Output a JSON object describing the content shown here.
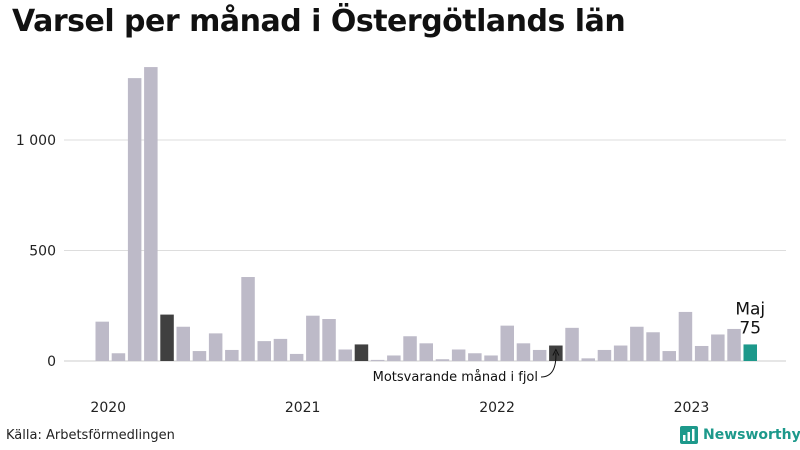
{
  "title": "Varsel per månad i Östergötlands län",
  "source": "Källa: Arbetsförmedlingen",
  "brand": {
    "name": "Newsworthy",
    "icon": "newsworthy-bar-chart-icon",
    "color": "#1d998b"
  },
  "colors": {
    "bar": "#bdbac8",
    "highlight": "#404040",
    "current": "#1d998b",
    "grid": "#dddddd"
  },
  "chart_data": {
    "type": "bar",
    "title": "Varsel per månad i Östergötlands län",
    "xlabel": "",
    "ylabel": "",
    "ylim": [
      0,
      1400
    ],
    "grid": true,
    "yticks": [
      {
        "value": 0,
        "label": "0"
      },
      {
        "value": 500,
        "label": "500"
      },
      {
        "value": 1000,
        "label": "1 000"
      }
    ],
    "year_labels": [
      {
        "label": "2020",
        "month_index": 0
      },
      {
        "label": "2021",
        "month_index": 12
      },
      {
        "label": "2022",
        "month_index": 24
      },
      {
        "label": "2023",
        "month_index": 36
      }
    ],
    "start": {
      "year": 2020,
      "month": 1
    },
    "values": [
      178,
      35,
      1280,
      1330,
      210,
      155,
      45,
      125,
      50,
      380,
      90,
      100,
      32,
      205,
      190,
      52,
      75,
      5,
      25,
      112,
      80,
      8,
      52,
      35,
      25,
      160,
      80,
      50,
      70,
      150,
      12,
      50,
      70,
      155,
      130,
      45,
      222,
      68,
      120,
      145,
      75
    ],
    "highlight_indices": [
      4,
      16,
      28
    ],
    "current_index": 40,
    "current_label": "Maj",
    "current_value_label": "75",
    "annotation": {
      "text": "Motsvarande månad i fjol",
      "target_index": 28
    }
  }
}
